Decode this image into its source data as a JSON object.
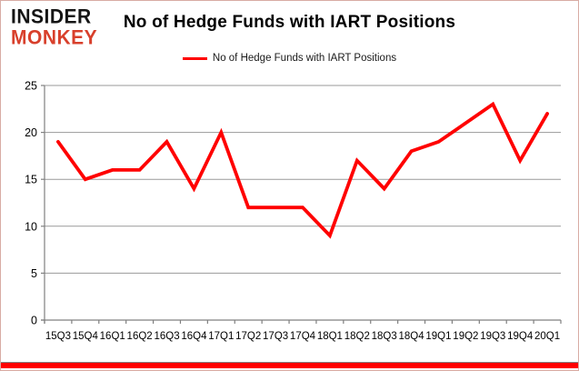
{
  "logo": {
    "line1": "INSIDER",
    "line2": "MONKEY",
    "line1_color": "#151515",
    "line2_color": "#d8402c"
  },
  "header": {
    "title": "No of Hedge Funds with IART Positions"
  },
  "legend": {
    "label": "No of Hedge Funds with IART Positions",
    "line_color": "#ff0000"
  },
  "colors": {
    "series_red": "#ff0000",
    "gridline_gray": "#9a9a9a",
    "axis_gray": "#808080",
    "bottom_bar_red": "#ff0000"
  },
  "chart_data": {
    "type": "line",
    "title": "No of Hedge Funds with IART Positions",
    "categories": [
      "15Q3",
      "15Q4",
      "16Q1",
      "16Q2",
      "16Q3",
      "16Q4",
      "17Q1",
      "17Q2",
      "17Q3",
      "17Q4",
      "18Q1",
      "18Q2",
      "18Q3",
      "18Q4",
      "19Q1",
      "19Q2",
      "19Q3",
      "19Q4",
      "20Q1"
    ],
    "series": [
      {
        "name": "No of Hedge Funds with IART Positions",
        "color": "#ff0000",
        "values": [
          19,
          15,
          16,
          16,
          19,
          14,
          20,
          12,
          12,
          12,
          9,
          17,
          14,
          18,
          19,
          21,
          23,
          17,
          22
        ]
      }
    ],
    "xlabel": "",
    "ylabel": "",
    "ylim": [
      0,
      25
    ],
    "yticks": [
      0,
      5,
      10,
      15,
      20,
      25
    ],
    "grid": true,
    "legend_position": "top-center"
  }
}
